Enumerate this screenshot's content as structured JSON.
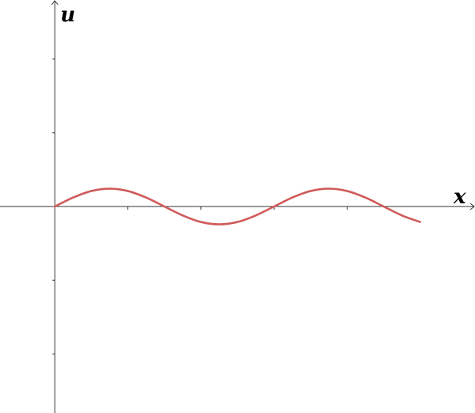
{
  "chart_data": {
    "type": "line",
    "xlabel": "x",
    "ylabel": "u",
    "xlim": [
      -0.75,
      5.75
    ],
    "ylim": [
      -2.8,
      2.8
    ],
    "x_ticks": [
      1,
      2,
      3,
      4
    ],
    "y_ticks": [
      -2,
      -1,
      1,
      2
    ],
    "grid": false,
    "legend": "none",
    "series": [
      {
        "color": "#d05a5a",
        "points": [
          [
            0,
            0
          ],
          [
            0.25,
            0.121
          ],
          [
            0.5,
            0.21
          ],
          [
            0.75,
            0.242
          ],
          [
            1.0,
            0.21
          ],
          [
            1.25,
            0.121
          ],
          [
            1.5,
            0.0
          ],
          [
            1.75,
            -0.121
          ],
          [
            2.0,
            -0.21
          ],
          [
            2.25,
            -0.242
          ],
          [
            2.5,
            -0.21
          ],
          [
            2.75,
            -0.121
          ],
          [
            3.0,
            0.0
          ],
          [
            3.25,
            0.121
          ],
          [
            3.5,
            0.21
          ],
          [
            3.75,
            0.242
          ],
          [
            4.0,
            0.21
          ],
          [
            4.25,
            0.121
          ],
          [
            4.5,
            0.0
          ],
          [
            4.75,
            -0.121
          ],
          [
            5.0,
            -0.21
          ]
        ]
      }
    ]
  }
}
